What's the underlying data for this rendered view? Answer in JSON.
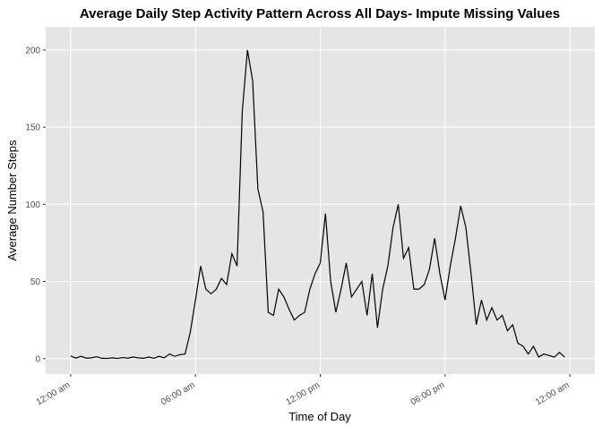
{
  "chart_data": {
    "type": "line",
    "title": "Average Daily Step Activity Pattern Across All Days- Impute Missing Values",
    "x_label": "Time of Day",
    "y_label": "Average Number Steps",
    "x": [
      0,
      0.25,
      0.5,
      0.75,
      1,
      1.25,
      1.5,
      1.75,
      2,
      2.25,
      2.5,
      2.75,
      3,
      3.25,
      3.5,
      3.75,
      4,
      4.25,
      4.5,
      4.75,
      5,
      5.25,
      5.5,
      5.75,
      6,
      6.25,
      6.5,
      6.75,
      7,
      7.25,
      7.5,
      7.75,
      8,
      8.25,
      8.5,
      8.75,
      9,
      9.25,
      9.5,
      9.75,
      10,
      10.25,
      10.5,
      10.75,
      11,
      11.25,
      11.5,
      11.75,
      12,
      12.25,
      12.5,
      12.75,
      13,
      13.25,
      13.5,
      13.75,
      14,
      14.25,
      14.5,
      14.75,
      15,
      15.25,
      15.5,
      15.75,
      16,
      16.25,
      16.5,
      16.75,
      17,
      17.25,
      17.5,
      17.75,
      18,
      18.25,
      18.5,
      18.75,
      19,
      19.25,
      19.5,
      19.75,
      20,
      20.25,
      20.5,
      20.75,
      21,
      21.25,
      21.5,
      21.75,
      22,
      22.25,
      22.5,
      22.75,
      23,
      23.25,
      23.5,
      23.75
    ],
    "series": [
      {
        "name": "Average Number Steps",
        "color": "#000000",
        "values": [
          1.7,
          0.3,
          1.5,
          0.3,
          0.5,
          1.2,
          0.2,
          0.1,
          0.5,
          0.1,
          0.7,
          0.3,
          1,
          0.5,
          0.2,
          1,
          0.2,
          1.5,
          0.5,
          3,
          1.5,
          2.5,
          3,
          17,
          38,
          60,
          45,
          42,
          45,
          52,
          48,
          68,
          60,
          160,
          200,
          180,
          110,
          95,
          30,
          28,
          45,
          40,
          32,
          25,
          28,
          30,
          45,
          55,
          62,
          94,
          50,
          30,
          45,
          62,
          40,
          45,
          50,
          28,
          55,
          20,
          45,
          60,
          85,
          100,
          65,
          72,
          45,
          45,
          48,
          58,
          78,
          55,
          38,
          60,
          78,
          99,
          85,
          55,
          22,
          38,
          25,
          33,
          25,
          28,
          18,
          22,
          10,
          8,
          3,
          8,
          1,
          3,
          2,
          1,
          4,
          1
        ]
      }
    ],
    "xlim": [
      -1.2,
      25.2
    ],
    "xticks": [
      {
        "value": 0,
        "label": "12:00 am"
      },
      {
        "value": 6,
        "label": "06:00 am"
      },
      {
        "value": 12,
        "label": "12:00 pm"
      },
      {
        "value": 18,
        "label": "06:00 pm"
      },
      {
        "value": 24,
        "label": "12:00 am"
      }
    ],
    "ylim": [
      -10,
      215
    ],
    "yticks": [
      0,
      50,
      100,
      150,
      200
    ],
    "grid": true
  }
}
